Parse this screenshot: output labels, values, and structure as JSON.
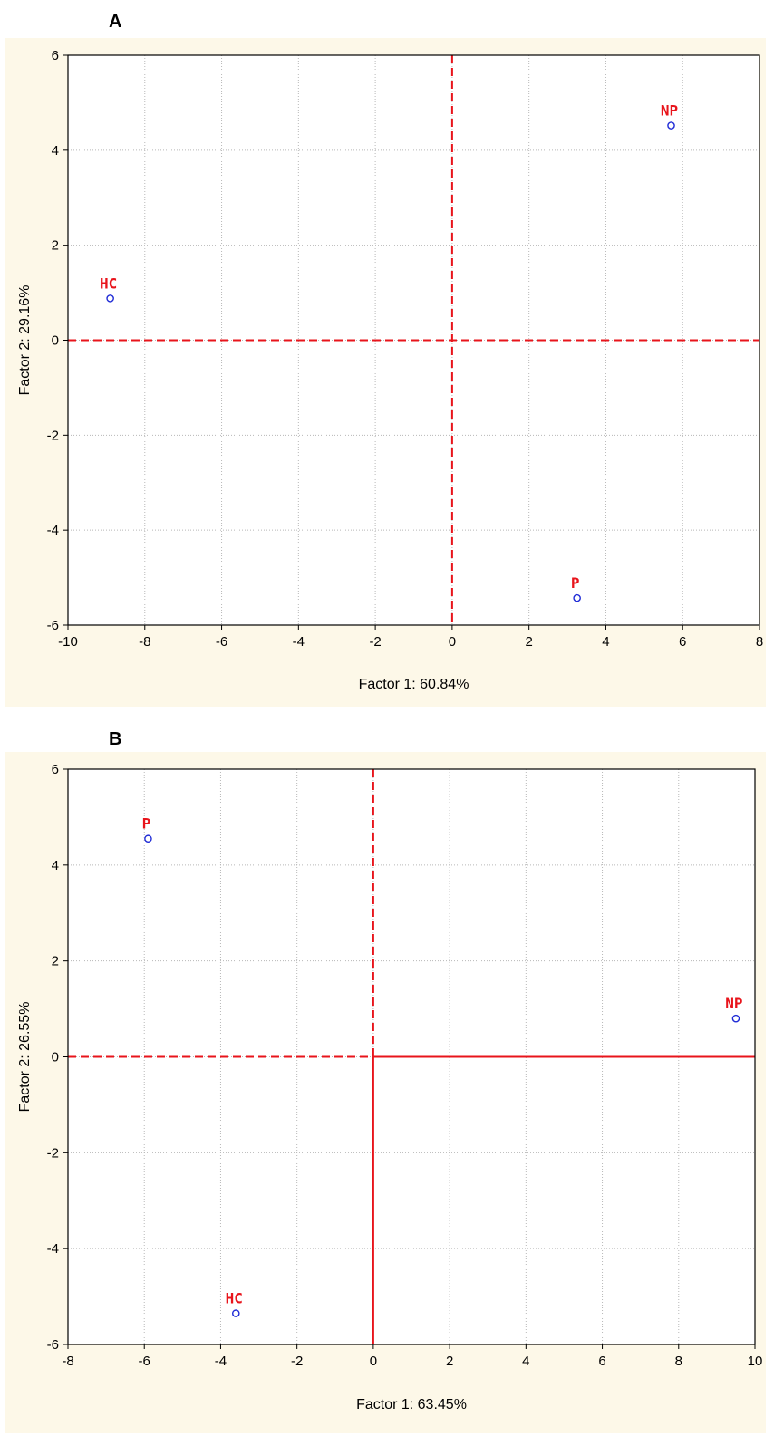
{
  "colors": {
    "panel_background": "#fdf8e8",
    "plot_background": "#ffffff",
    "grid": "#b8b8b8",
    "reference_lines": "#e8141b",
    "marker": "#1f2bd6",
    "point_labels": "#e8141b"
  },
  "chart_data": [
    {
      "type": "scatter",
      "panel_label": "A",
      "xlabel": "Factor 1: 60.84%",
      "ylabel": "Factor 2: 29.16%",
      "xlim": [
        -10,
        8
      ],
      "ylim": [
        -6,
        6
      ],
      "xticks": [
        -10,
        -8,
        -6,
        -4,
        -2,
        0,
        2,
        4,
        6,
        8
      ],
      "yticks": [
        -6,
        -4,
        -2,
        0,
        2,
        4,
        6
      ],
      "grid": true,
      "reference_lines": {
        "x0": "dashed",
        "y0": "dashed"
      },
      "points": [
        {
          "label": "HC",
          "x": -8.9,
          "y": 0.88
        },
        {
          "label": "NP",
          "x": 5.7,
          "y": 4.52
        },
        {
          "label": "P",
          "x": 3.25,
          "y": -5.43
        }
      ]
    },
    {
      "type": "scatter",
      "panel_label": "B",
      "xlabel": "Factor 1: 63.45%",
      "ylabel": "Factor 2: 26.55%",
      "xlim": [
        -8,
        10
      ],
      "ylim": [
        -6,
        6
      ],
      "xticks": [
        -8,
        -6,
        -4,
        -2,
        0,
        2,
        4,
        6,
        8,
        10
      ],
      "yticks": [
        -6,
        -4,
        -2,
        0,
        2,
        4,
        6
      ],
      "grid": true,
      "reference_lines": {
        "x0": "dashed above 0, solid below 0",
        "y0": "dashed left of 0, solid right of 0"
      },
      "points": [
        {
          "label": "P",
          "x": -5.9,
          "y": 4.55
        },
        {
          "label": "NP",
          "x": 9.5,
          "y": 0.8
        },
        {
          "label": "HC",
          "x": -3.6,
          "y": -5.35
        }
      ]
    }
  ]
}
